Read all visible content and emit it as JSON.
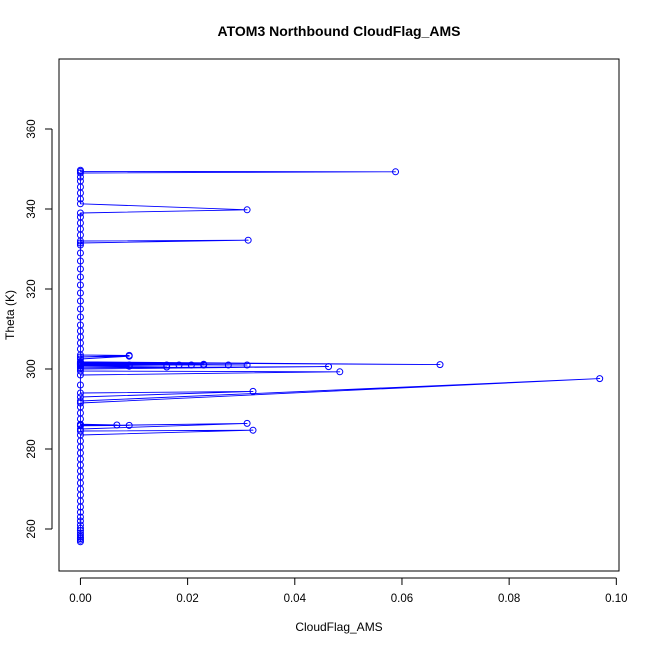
{
  "chart_data": {
    "type": "line",
    "title": "ATOM3 Northbound CloudFlag_AMS",
    "xlabel": "CloudFlag_AMS",
    "ylabel": "Theta (K)",
    "xlim": [
      -0.004,
      0.1005
    ],
    "ylim": [
      249.5,
      377.5
    ],
    "x_ticks": [
      0.0,
      0.02,
      0.04,
      0.06,
      0.08,
      0.1
    ],
    "x_tick_labels": [
      "0.00",
      "0.02",
      "0.04",
      "0.06",
      "0.08",
      "0.10"
    ],
    "y_ticks": [
      260,
      280,
      300,
      320,
      340,
      360
    ],
    "y_tick_labels": [
      "260",
      "280",
      "300",
      "320",
      "340",
      "360"
    ],
    "grid": false,
    "legend": "none",
    "marker": "open-circle",
    "colors": {
      "series": "#0000ff",
      "axis": "#000000",
      "background": "#ffffff"
    },
    "series": [
      {
        "points": [
          [
            0,
            256.8
          ],
          [
            0,
            257.2
          ],
          [
            0,
            257.6
          ],
          [
            0,
            258.0
          ],
          [
            0,
            258.5
          ],
          [
            0,
            259.0
          ],
          [
            0,
            259.6
          ],
          [
            0,
            260.2
          ],
          [
            0,
            261.0
          ],
          [
            0,
            262.0
          ],
          [
            0,
            263.0
          ],
          [
            0,
            264.2
          ],
          [
            0,
            265.5
          ],
          [
            0,
            267.0
          ],
          [
            0,
            268.5
          ],
          [
            0,
            270.0
          ],
          [
            0,
            271.5
          ],
          [
            0,
            273.0
          ],
          [
            0,
            274.5
          ],
          [
            0,
            276.0
          ],
          [
            0,
            277.5
          ],
          [
            0,
            279.0
          ],
          [
            0,
            280.5
          ],
          [
            0,
            282.0
          ],
          [
            0,
            283.5
          ],
          [
            0.0322,
            284.7
          ],
          [
            0,
            284.5
          ],
          [
            0,
            285.0
          ],
          [
            0.0311,
            286.4
          ],
          [
            0,
            285.8
          ],
          [
            0.0091,
            285.9
          ],
          [
            0,
            286.0
          ],
          [
            0.0068,
            286.0
          ],
          [
            0,
            286.2
          ],
          [
            0,
            287.5
          ],
          [
            0,
            289.0
          ],
          [
            0,
            290.5
          ],
          [
            0,
            291.5
          ],
          [
            0.0969,
            297.6
          ],
          [
            0,
            292.0
          ],
          [
            0,
            293.0
          ],
          [
            0.0322,
            294.4
          ],
          [
            0,
            294.0
          ],
          [
            0,
            296.0
          ],
          [
            0,
            298.5
          ],
          [
            0.0484,
            299.3
          ],
          [
            0,
            299.5
          ],
          [
            0,
            300.0
          ],
          [
            0.0463,
            300.6
          ],
          [
            0,
            300.3
          ],
          [
            0.0161,
            300.5
          ],
          [
            0,
            300.7
          ],
          [
            0.0091,
            300.7
          ],
          [
            0,
            300.8
          ],
          [
            0.0161,
            301.0
          ],
          [
            0,
            301.0
          ],
          [
            0.0184,
            301.0
          ],
          [
            0,
            301.1
          ],
          [
            0.0207,
            301.0
          ],
          [
            0,
            301.2
          ],
          [
            0.023,
            301.0
          ],
          [
            0,
            301.3
          ],
          [
            0.0276,
            301.0
          ],
          [
            0,
            301.3
          ],
          [
            0.0311,
            301.0
          ],
          [
            0,
            301.4
          ],
          [
            0.023,
            301.2
          ],
          [
            0,
            301.5
          ],
          [
            0.0091,
            301.0
          ],
          [
            0,
            301.6
          ],
          [
            0.0671,
            301.1
          ],
          [
            0,
            301.8
          ],
          [
            0,
            302.5
          ],
          [
            0.0091,
            303.2
          ],
          [
            0,
            303.0
          ],
          [
            0.0091,
            303.4
          ],
          [
            0,
            303.5
          ],
          [
            0,
            305.0
          ],
          [
            0,
            306.5
          ],
          [
            0,
            308.0
          ],
          [
            0,
            309.5
          ],
          [
            0,
            311.0
          ],
          [
            0,
            313.0
          ],
          [
            0,
            315.0
          ],
          [
            0,
            317.0
          ],
          [
            0,
            319.0
          ],
          [
            0,
            321.0
          ],
          [
            0,
            323.0
          ],
          [
            0,
            325.0
          ],
          [
            0,
            327.0
          ],
          [
            0,
            329.0
          ],
          [
            0,
            331.0
          ],
          [
            0,
            331.5
          ],
          [
            0.0313,
            332.2
          ],
          [
            0,
            332.0
          ],
          [
            0,
            333.5
          ],
          [
            0,
            335.0
          ],
          [
            0,
            336.5
          ],
          [
            0,
            338.0
          ],
          [
            0,
            339.0
          ],
          [
            0.0311,
            339.8
          ],
          [
            0,
            341.3
          ],
          [
            0,
            342.5
          ],
          [
            0,
            344.0
          ],
          [
            0,
            345.5
          ],
          [
            0,
            347.0
          ],
          [
            0,
            348.0
          ],
          [
            0,
            349.0
          ],
          [
            0.0588,
            349.3
          ],
          [
            0,
            349.4
          ],
          [
            0,
            349.7
          ]
        ]
      }
    ]
  }
}
